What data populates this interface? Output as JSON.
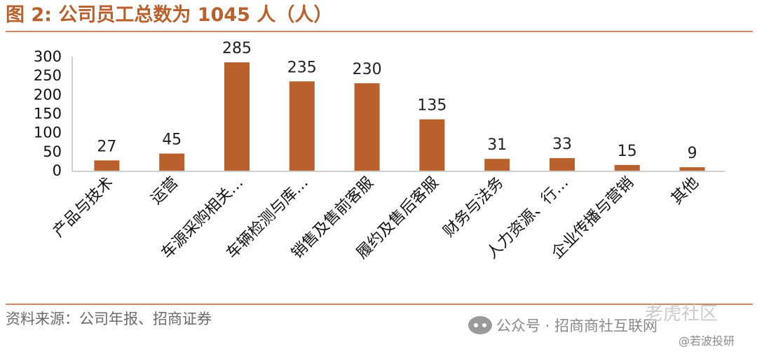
{
  "header": {
    "title": "图 2:  公司员工总数为 1045 人（人）"
  },
  "chart_data": {
    "type": "bar",
    "categories": [
      "产品与技术",
      "运营",
      "车源采购相关…",
      "车辆检测与库…",
      "销售及售前客服",
      "履约及售后客服",
      "财务与法务",
      "人力资源、行…",
      "企业传播与营销",
      "其他"
    ],
    "values": [
      27,
      45,
      285,
      235,
      230,
      135,
      31,
      33,
      15,
      9
    ],
    "ylim": [
      0,
      300
    ],
    "yticks": [
      0,
      50,
      100,
      150,
      200,
      250,
      300
    ],
    "bar_color": "#B8612C",
    "grid": false,
    "legend": "none"
  },
  "footer": {
    "source": "资料来源：公司年报、招商证券",
    "watermark": "公众号 · 招商商社互联网",
    "brand": "老虎社区",
    "author": "@若波投研"
  }
}
